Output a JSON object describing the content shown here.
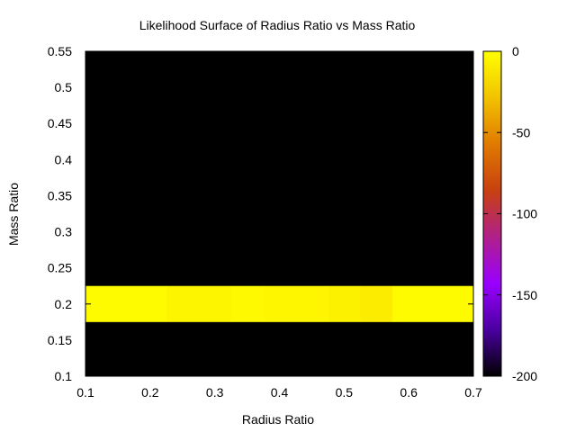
{
  "chart_data": {
    "type": "heatmap",
    "title": "Likelihood Surface of Radius Ratio vs Mass Ratio",
    "xlabel": "Radius Ratio",
    "ylabel": "Mass Ratio",
    "xlim": [
      0.1,
      0.7
    ],
    "ylim": [
      0.1,
      0.55
    ],
    "x_ticks": [
      "0.1",
      "0.2",
      "0.3",
      "0.4",
      "0.5",
      "0.6",
      "0.7"
    ],
    "y_ticks": [
      "0.1",
      "0.15",
      "0.2",
      "0.25",
      "0.3",
      "0.35",
      "0.4",
      "0.45",
      "0.5",
      "0.55"
    ],
    "colorbar": {
      "range": [
        -200,
        0
      ],
      "ticks": [
        "0",
        "-50",
        "-100",
        "-150",
        "-200"
      ],
      "palette": [
        "#000000",
        "#4a00a0",
        "#9a00ff",
        "#b0208a",
        "#c84010",
        "#e07a00",
        "#f2c200",
        "#ffff00"
      ]
    },
    "background_value": -200,
    "cells": [
      {
        "x_range": [
          0.1,
          0.225
        ],
        "y_range": [
          0.175,
          0.225
        ],
        "value": -2
      },
      {
        "x_range": [
          0.225,
          0.325
        ],
        "y_range": [
          0.175,
          0.225
        ],
        "value": -5
      },
      {
        "x_range": [
          0.325,
          0.375
        ],
        "y_range": [
          0.175,
          0.225
        ],
        "value": -3
      },
      {
        "x_range": [
          0.375,
          0.475
        ],
        "y_range": [
          0.175,
          0.225
        ],
        "value": -4
      },
      {
        "x_range": [
          0.475,
          0.525
        ],
        "y_range": [
          0.175,
          0.225
        ],
        "value": -6
      },
      {
        "x_range": [
          0.525,
          0.575
        ],
        "y_range": [
          0.175,
          0.225
        ],
        "value": -9
      },
      {
        "x_range": [
          0.575,
          0.7
        ],
        "y_range": [
          0.175,
          0.225
        ],
        "value": -2
      }
    ]
  }
}
